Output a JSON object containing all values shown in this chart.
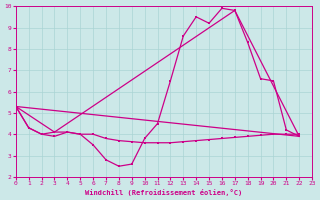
{
  "xlabel": "Windchill (Refroidissement éolien,°C)",
  "background_color": "#cce8e8",
  "grid_color": "#aad4d4",
  "line_color": "#cc0088",
  "xlim": [
    0,
    23
  ],
  "ylim": [
    2,
    10
  ],
  "xticks": [
    0,
    1,
    2,
    3,
    4,
    5,
    6,
    7,
    8,
    9,
    10,
    11,
    12,
    13,
    14,
    15,
    16,
    17,
    18,
    19,
    20,
    21,
    22,
    23
  ],
  "yticks": [
    2,
    3,
    4,
    5,
    6,
    7,
    8,
    9,
    10
  ],
  "line1_x": [
    0,
    1,
    2,
    3,
    4,
    5,
    6,
    7,
    8,
    9,
    10,
    11,
    12,
    13,
    14,
    15,
    16,
    17,
    18,
    19,
    20,
    21,
    22
  ],
  "line1_y": [
    5.3,
    4.3,
    4.0,
    3.9,
    4.1,
    4.0,
    3.5,
    2.8,
    2.5,
    2.6,
    3.8,
    4.5,
    6.5,
    8.6,
    9.5,
    9.2,
    9.9,
    9.8,
    8.3,
    6.6,
    6.5,
    4.2,
    3.9
  ],
  "line2_x": [
    0,
    22
  ],
  "line2_y": [
    5.3,
    3.9
  ],
  "line3_x": [
    0,
    3,
    17,
    22
  ],
  "line3_y": [
    5.3,
    4.1,
    9.8,
    3.9
  ],
  "line4_x": [
    0,
    1,
    2,
    3,
    4,
    5,
    6,
    7,
    8,
    9,
    10,
    11,
    12,
    13,
    14,
    15,
    16,
    17,
    18,
    19,
    20,
    21,
    22
  ],
  "line4_y": [
    5.3,
    4.3,
    4.0,
    4.1,
    4.1,
    4.0,
    4.0,
    3.8,
    3.7,
    3.65,
    3.6,
    3.6,
    3.6,
    3.65,
    3.7,
    3.75,
    3.8,
    3.85,
    3.9,
    3.95,
    4.0,
    4.0,
    4.0
  ]
}
